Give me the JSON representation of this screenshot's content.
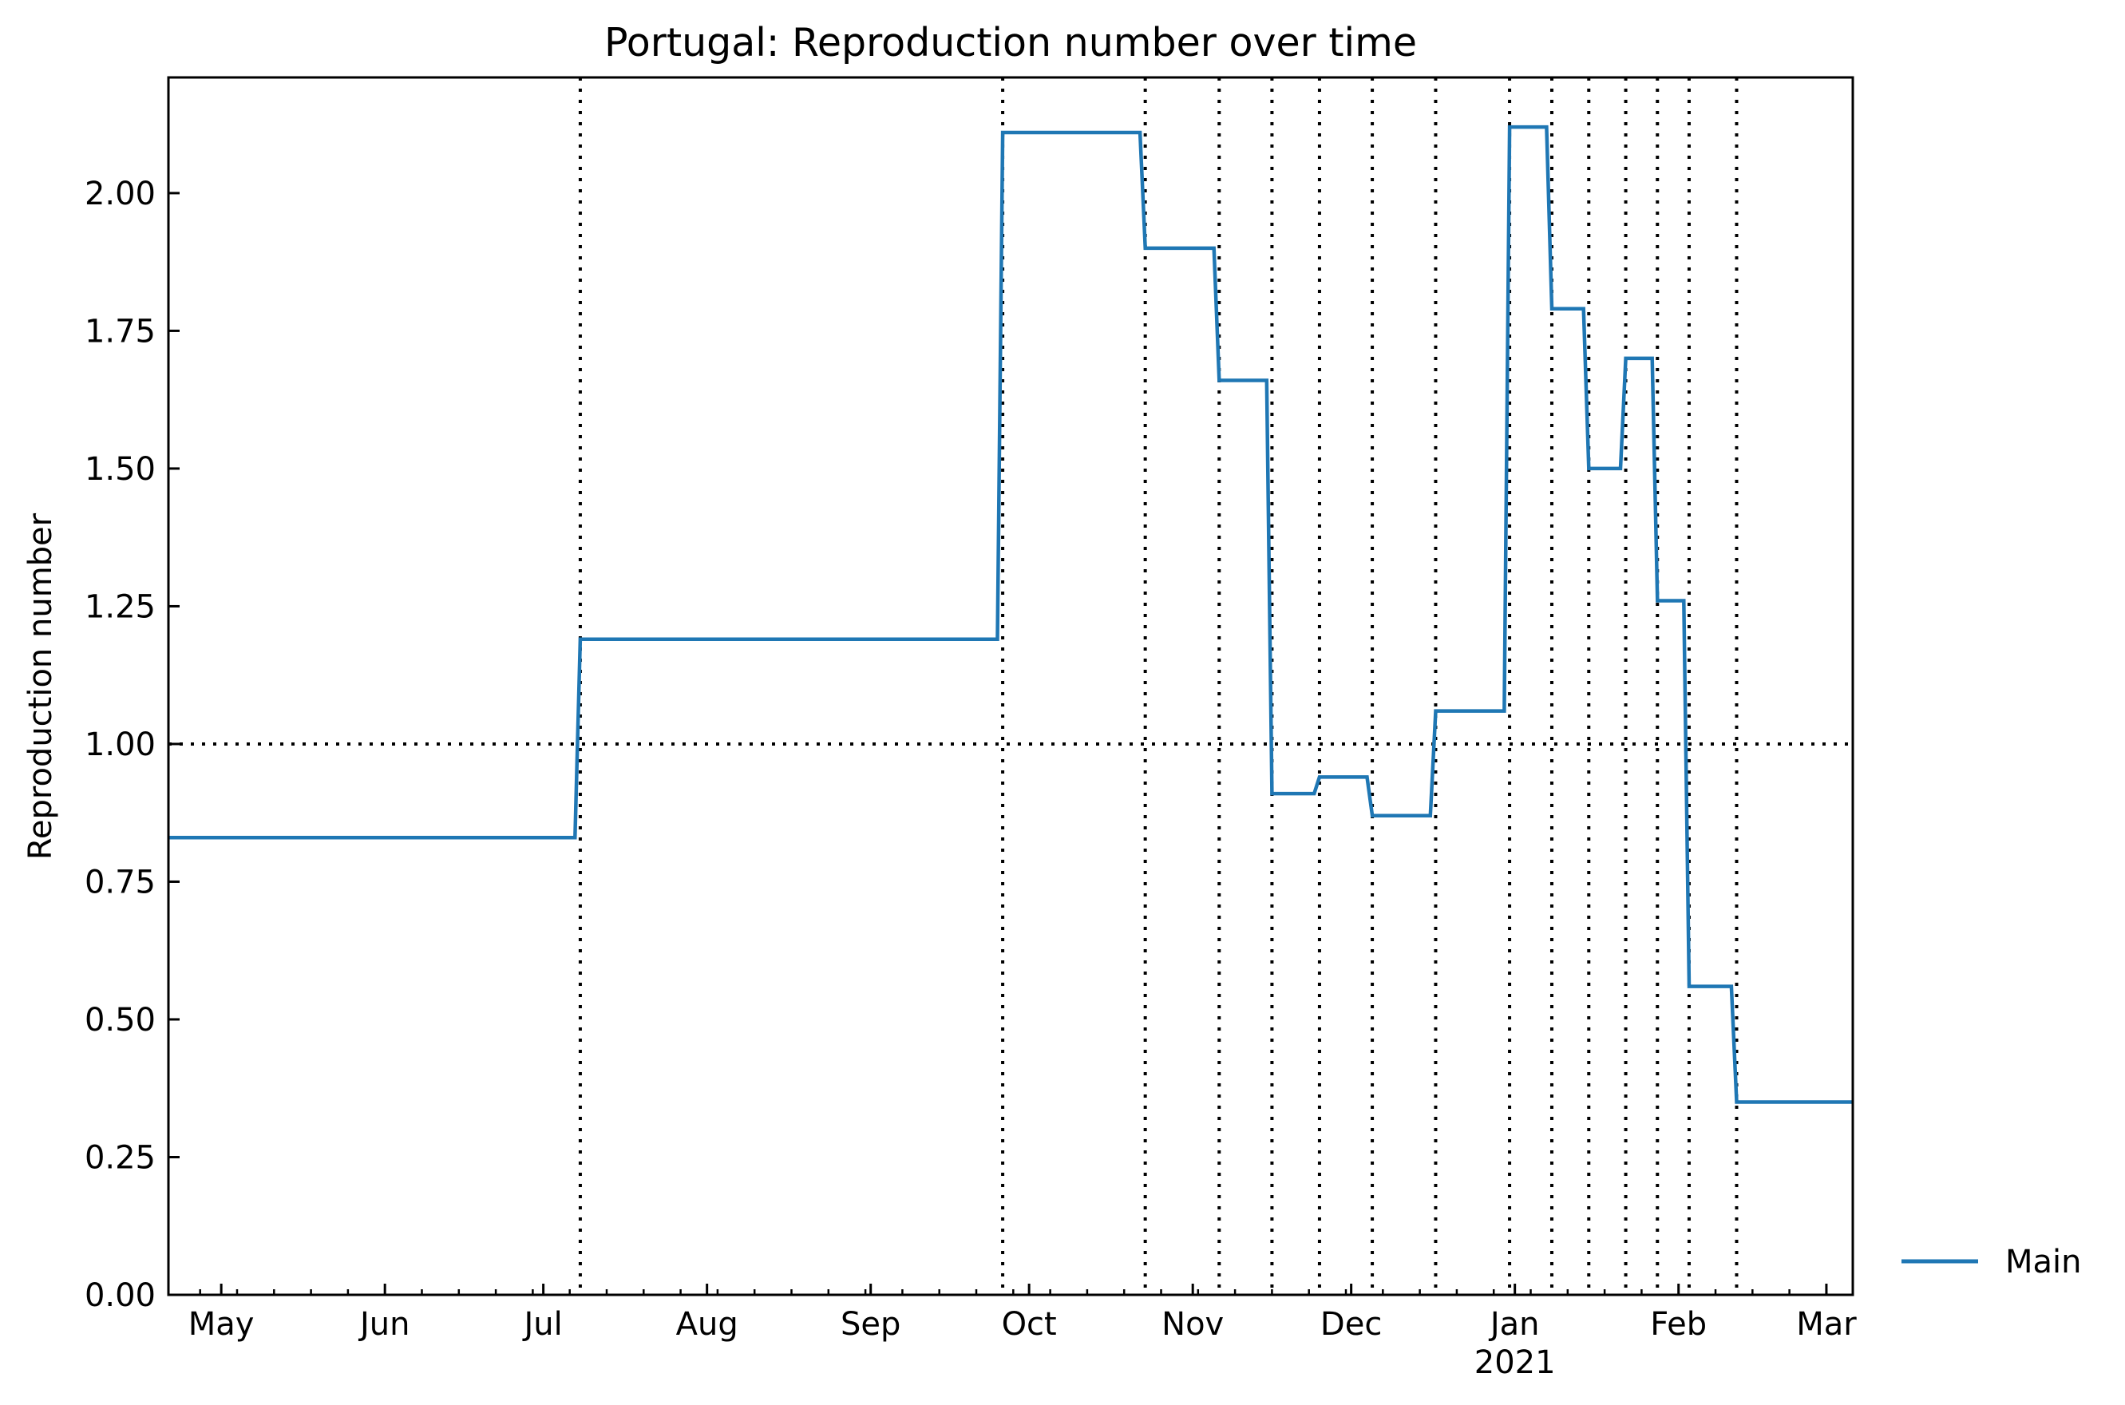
{
  "chart_data": {
    "type": "line",
    "title": "Portugal: Reproduction number over time",
    "xlabel": "",
    "ylabel": "Reproduction number",
    "x_range": [
      "2020-04-21",
      "2021-03-06"
    ],
    "ylim": [
      0,
      2.21
    ],
    "y_ticks": [
      {
        "value": 0.0,
        "label": "0.00"
      },
      {
        "value": 0.25,
        "label": "0.25"
      },
      {
        "value": 0.5,
        "label": "0.50"
      },
      {
        "value": 0.75,
        "label": "0.75"
      },
      {
        "value": 1.0,
        "label": "1.00"
      },
      {
        "value": 1.25,
        "label": "1.25"
      },
      {
        "value": 1.5,
        "label": "1.50"
      },
      {
        "value": 1.75,
        "label": "1.75"
      },
      {
        "value": 2.0,
        "label": "2.00"
      }
    ],
    "x_ticks": [
      {
        "date": "2020-05-01",
        "label": "May"
      },
      {
        "date": "2020-06-01",
        "label": "Jun"
      },
      {
        "date": "2020-07-01",
        "label": "Jul"
      },
      {
        "date": "2020-08-01",
        "label": "Aug"
      },
      {
        "date": "2020-09-01",
        "label": "Sep"
      },
      {
        "date": "2020-10-01",
        "label": "Oct"
      },
      {
        "date": "2020-11-01",
        "label": "Nov"
      },
      {
        "date": "2020-12-01",
        "label": "Dec"
      },
      {
        "date": "2021-01-01",
        "label": "Jan",
        "sublabel": "2021"
      },
      {
        "date": "2021-02-01",
        "label": "Feb"
      },
      {
        "date": "2021-03-01",
        "label": "Mar"
      }
    ],
    "reference_line_y": 1.0,
    "breakpoints": [
      "2020-07-08",
      "2020-09-26",
      "2020-10-23",
      "2020-11-06",
      "2020-11-16",
      "2020-11-25",
      "2020-12-05",
      "2020-12-17",
      "2020-12-31",
      "2021-01-08",
      "2021-01-15",
      "2021-01-22",
      "2021-01-28",
      "2021-02-03",
      "2021-02-12"
    ],
    "series": [
      {
        "name": "Main",
        "color": "#1f77b4",
        "points": [
          {
            "x": "2020-04-21",
            "y": 0.83
          },
          {
            "x": "2020-07-07",
            "y": 0.83
          },
          {
            "x": "2020-07-08",
            "y": 1.19
          },
          {
            "x": "2020-09-25",
            "y": 1.19
          },
          {
            "x": "2020-09-26",
            "y": 2.11
          },
          {
            "x": "2020-10-22",
            "y": 2.11
          },
          {
            "x": "2020-10-23",
            "y": 1.9
          },
          {
            "x": "2020-11-05",
            "y": 1.9
          },
          {
            "x": "2020-11-06",
            "y": 1.66
          },
          {
            "x": "2020-11-15",
            "y": 1.66
          },
          {
            "x": "2020-11-16",
            "y": 0.91
          },
          {
            "x": "2020-11-24",
            "y": 0.91
          },
          {
            "x": "2020-11-25",
            "y": 0.94
          },
          {
            "x": "2020-12-04",
            "y": 0.94
          },
          {
            "x": "2020-12-05",
            "y": 0.87
          },
          {
            "x": "2020-12-16",
            "y": 0.87
          },
          {
            "x": "2020-12-17",
            "y": 1.06
          },
          {
            "x": "2020-12-30",
            "y": 1.06
          },
          {
            "x": "2020-12-31",
            "y": 2.12
          },
          {
            "x": "2021-01-07",
            "y": 2.12
          },
          {
            "x": "2021-01-08",
            "y": 1.79
          },
          {
            "x": "2021-01-14",
            "y": 1.79
          },
          {
            "x": "2021-01-15",
            "y": 1.5
          },
          {
            "x": "2021-01-21",
            "y": 1.5
          },
          {
            "x": "2021-01-22",
            "y": 1.7
          },
          {
            "x": "2021-01-27",
            "y": 1.7
          },
          {
            "x": "2021-01-28",
            "y": 1.26
          },
          {
            "x": "2021-02-02",
            "y": 1.26
          },
          {
            "x": "2021-02-03",
            "y": 0.56
          },
          {
            "x": "2021-02-11",
            "y": 0.56
          },
          {
            "x": "2021-02-12",
            "y": 0.35
          },
          {
            "x": "2021-03-06",
            "y": 0.35
          }
        ]
      }
    ],
    "legend": {
      "position": "right-bottom",
      "entries": [
        "Main"
      ]
    },
    "grid": false
  }
}
